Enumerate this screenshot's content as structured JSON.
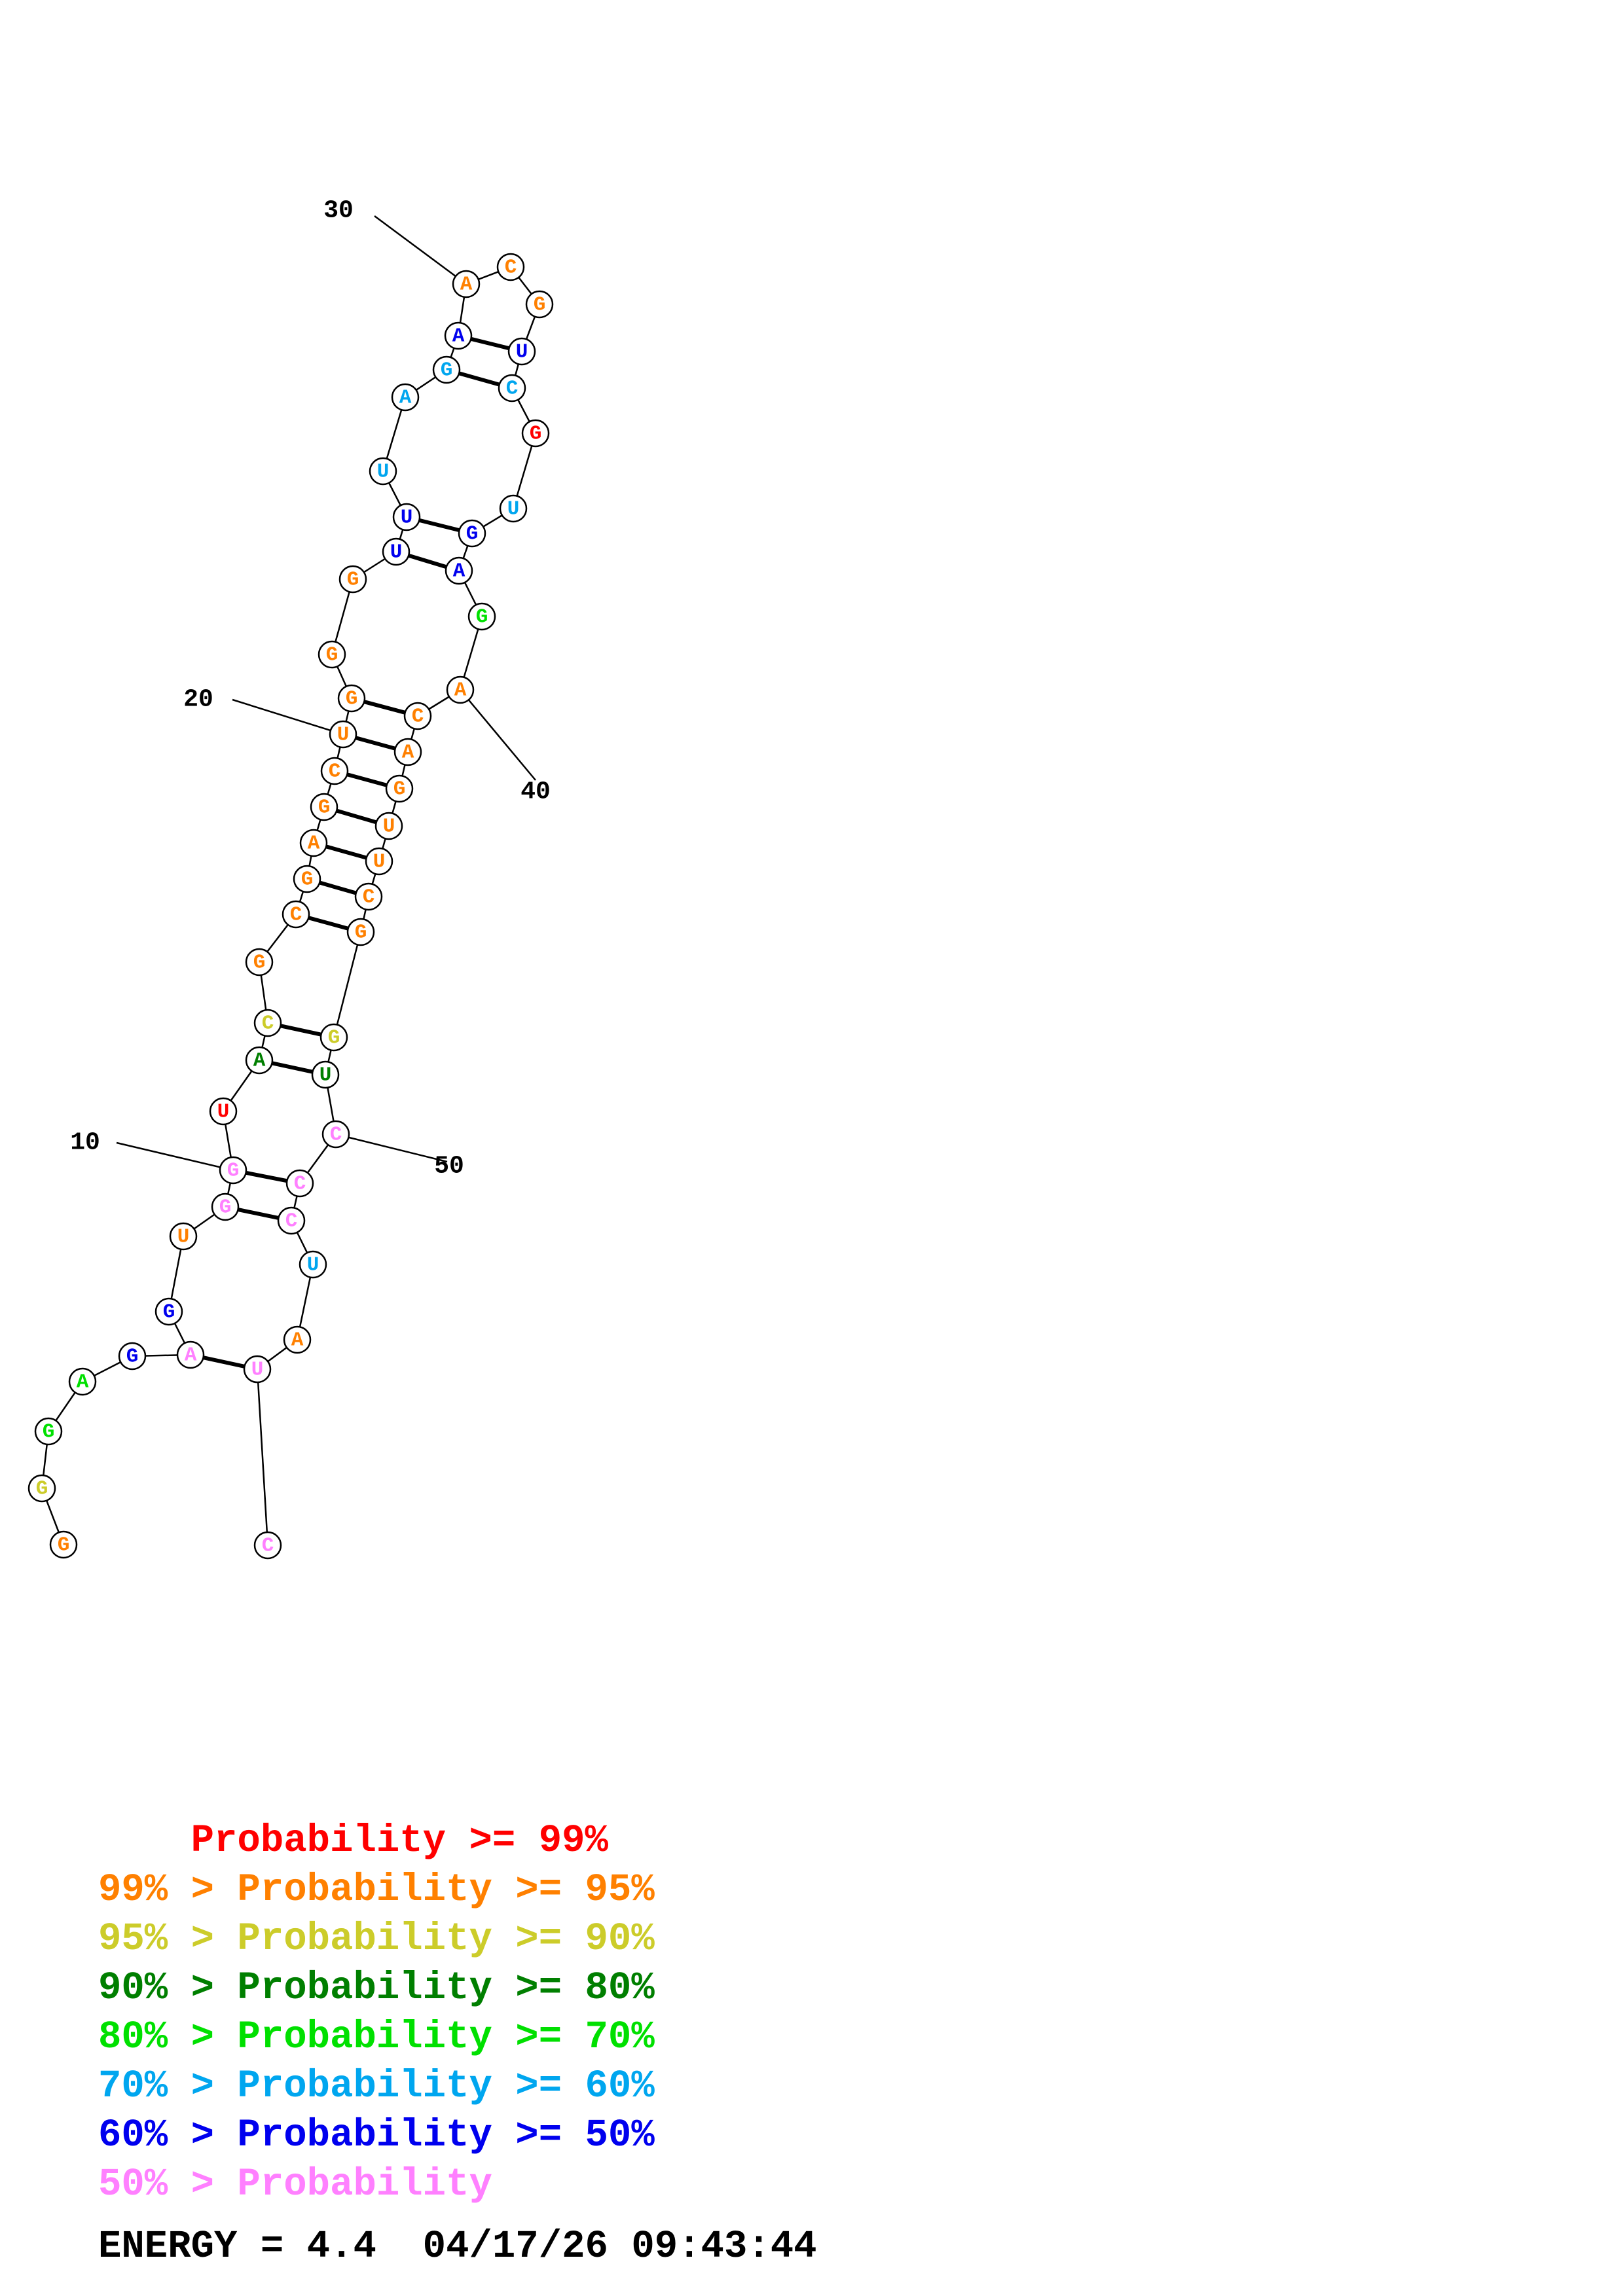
{
  "structure": {
    "nucleotides": [
      {
        "n": 1,
        "base": "G",
        "level": "orange"
      },
      {
        "n": 2,
        "base": "G",
        "level": "yellow"
      },
      {
        "n": 3,
        "base": "G",
        "level": "lightgreen"
      },
      {
        "n": 4,
        "base": "A",
        "level": "lightgreen"
      },
      {
        "n": 5,
        "base": "G",
        "level": "blue"
      },
      {
        "n": 6,
        "base": "A",
        "level": "pink"
      },
      {
        "n": 7,
        "base": "G",
        "level": "blue"
      },
      {
        "n": 8,
        "base": "U",
        "level": "orange"
      },
      {
        "n": 9,
        "base": "G",
        "level": "pink"
      },
      {
        "n": 10,
        "base": "G",
        "level": "pink"
      },
      {
        "n": 11,
        "base": "U",
        "level": "red"
      },
      {
        "n": 12,
        "base": "A",
        "level": "darkgreen"
      },
      {
        "n": 13,
        "base": "C",
        "level": "yellow"
      },
      {
        "n": 14,
        "base": "G",
        "level": "orange"
      },
      {
        "n": 15,
        "base": "C",
        "level": "orange"
      },
      {
        "n": 16,
        "base": "G",
        "level": "orange"
      },
      {
        "n": 17,
        "base": "A",
        "level": "orange"
      },
      {
        "n": 18,
        "base": "G",
        "level": "orange"
      },
      {
        "n": 19,
        "base": "C",
        "level": "orange"
      },
      {
        "n": 20,
        "base": "U",
        "level": "orange"
      },
      {
        "n": 21,
        "base": "G",
        "level": "orange"
      },
      {
        "n": 22,
        "base": "G",
        "level": "orange"
      },
      {
        "n": 23,
        "base": "G",
        "level": "orange"
      },
      {
        "n": 24,
        "base": "U",
        "level": "blue"
      },
      {
        "n": 25,
        "base": "U",
        "level": "blue"
      },
      {
        "n": 26,
        "base": "U",
        "level": "cyan"
      },
      {
        "n": 27,
        "base": "A",
        "level": "cyan"
      },
      {
        "n": 28,
        "base": "G",
        "level": "cyan"
      },
      {
        "n": 29,
        "base": "A",
        "level": "blue"
      },
      {
        "n": 30,
        "base": "A",
        "level": "orange"
      },
      {
        "n": 31,
        "base": "C",
        "level": "orange"
      },
      {
        "n": 32,
        "base": "G",
        "level": "orange"
      },
      {
        "n": 33,
        "base": "U",
        "level": "blue"
      },
      {
        "n": 34,
        "base": "C",
        "level": "cyan"
      },
      {
        "n": 35,
        "base": "G",
        "level": "red"
      },
      {
        "n": 36,
        "base": "U",
        "level": "cyan"
      },
      {
        "n": 37,
        "base": "G",
        "level": "blue"
      },
      {
        "n": 38,
        "base": "A",
        "level": "blue"
      },
      {
        "n": 39,
        "base": "G",
        "level": "lightgreen"
      },
      {
        "n": 40,
        "base": "A",
        "level": "orange"
      },
      {
        "n": 41,
        "base": "C",
        "level": "orange"
      },
      {
        "n": 42,
        "base": "A",
        "level": "orange"
      },
      {
        "n": 43,
        "base": "G",
        "level": "orange"
      },
      {
        "n": 44,
        "base": "U",
        "level": "orange"
      },
      {
        "n": 45,
        "base": "U",
        "level": "orange"
      },
      {
        "n": 46,
        "base": "C",
        "level": "orange"
      },
      {
        "n": 47,
        "base": "G",
        "level": "orange"
      },
      {
        "n": 48,
        "base": "G",
        "level": "yellow"
      },
      {
        "n": 49,
        "base": "U",
        "level": "darkgreen"
      },
      {
        "n": 50,
        "base": "C",
        "level": "pink"
      },
      {
        "n": 51,
        "base": "C",
        "level": "pink"
      },
      {
        "n": 52,
        "base": "C",
        "level": "pink"
      },
      {
        "n": 53,
        "base": "U",
        "level": "cyan"
      },
      {
        "n": 54,
        "base": "A",
        "level": "orange"
      },
      {
        "n": 55,
        "base": "U",
        "level": "pink"
      },
      {
        "n": 56,
        "base": "C",
        "level": "pink"
      }
    ],
    "pairs": [
      [
        6,
        55
      ],
      [
        9,
        52
      ],
      [
        10,
        51
      ],
      [
        12,
        49
      ],
      [
        13,
        48
      ],
      [
        15,
        47
      ],
      [
        16,
        46
      ],
      [
        17,
        45
      ],
      [
        18,
        44
      ],
      [
        19,
        43
      ],
      [
        20,
        42
      ],
      [
        21,
        41
      ],
      [
        24,
        38
      ],
      [
        25,
        37
      ],
      [
        28,
        34
      ],
      [
        29,
        33
      ]
    ],
    "position_labels": [
      "10",
      "20",
      "30",
      "40",
      "50"
    ]
  },
  "legend": {
    "lines": [
      {
        "prefix": "    ",
        "level": "red",
        "text": "    Probability >= 99%"
      },
      {
        "prefix": "",
        "level": "orange",
        "text": "99% > Probability >= 95%"
      },
      {
        "prefix": "",
        "level": "yellow",
        "text": "95% > Probability >= 90%"
      },
      {
        "prefix": "",
        "level": "darkgreen",
        "text": "90% > Probability >= 80%"
      },
      {
        "prefix": "",
        "level": "lightgreen",
        "text": "80% > Probability >= 70%"
      },
      {
        "prefix": "",
        "level": "cyan",
        "text": "70% > Probability >= 60%"
      },
      {
        "prefix": "",
        "level": "blue",
        "text": "60% > Probability >= 50%"
      },
      {
        "prefix": "",
        "level": "pink",
        "text": "50% > Probability"
      }
    ],
    "energy": "ENERGY = 4.4  04/17/26 09:43:44"
  },
  "colors": {
    "red": "#ff0000",
    "orange": "#ff8000",
    "yellow": "#cccc2a",
    "darkgreen": "#007f00",
    "lightgreen": "#00e000",
    "cyan": "#00a6ef",
    "blue": "#0000ee",
    "pink": "#ff80ff"
  }
}
